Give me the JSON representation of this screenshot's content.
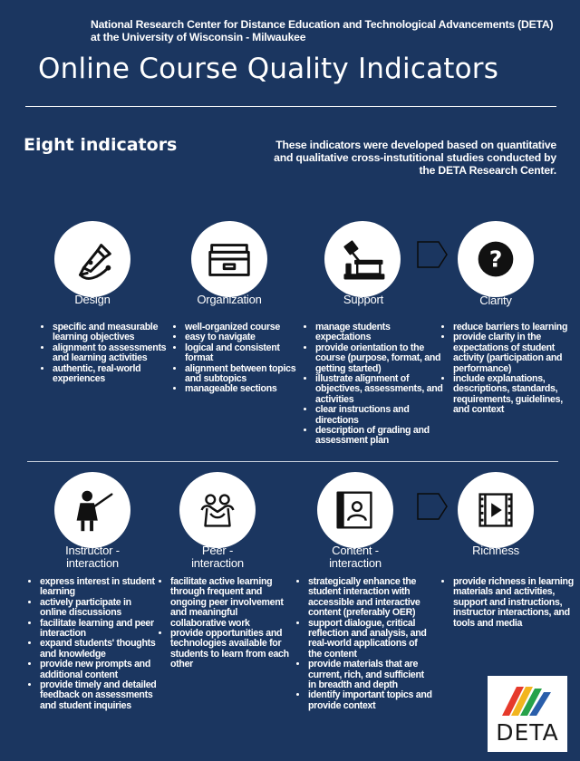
{
  "header": {
    "org_line1": "National Research Center for Distance Education and Technological Advancements (DETA)",
    "org_line2": "at the University of Wisconsin - Milwaukee",
    "title": "Online Course Quality Indicators"
  },
  "section": {
    "heading": "Eight indicators",
    "intro": "These indicators were developed based on quantitative and qualitative cross-instutitional studies conducted by the DETA Research Center."
  },
  "indicators": [
    {
      "label": "Design",
      "icon": "pen-icon",
      "bullets": [
        "specific and measurable learning objectives",
        "alignment to assessments and learning activities",
        "authentic, real-world experiences"
      ]
    },
    {
      "label": "Organization",
      "icon": "folder-icon",
      "bullets": [
        "well-organized course",
        "easy to navigate",
        "logical and consistent format",
        "alignment between topics and subtopics",
        "manageable sections"
      ]
    },
    {
      "label": "Support",
      "icon": "desk-lamp-icon",
      "bullets": [
        "manage students expectations",
        "provide orientation to the course (purpose, format, and getting started)",
        "illustrate alignment of objectives, assessments, and activities",
        "clear instructions and directions",
        "description of grading and assessment plan"
      ]
    },
    {
      "label": "Clarity",
      "icon": "question-icon",
      "bullets": [
        "reduce barriers to learning",
        "provide clarity in the expectations of student activity (participation and performance)",
        "include explanations, descriptions, standards, requirements, guidelines, and context"
      ]
    },
    {
      "label_line1": "Instructor -",
      "label_line2": "interaction",
      "icon": "teacher-icon",
      "bullets": [
        "express interest in student learning",
        "actively participate in online discussions",
        "facilitate learning and peer interaction",
        "expand students' thoughts and knowledge",
        "provide new prompts and additional content",
        "provide timely and detailed feedback on assessments and student inquiries"
      ]
    },
    {
      "label_line1": "Peer -",
      "label_line2": "interaction",
      "icon": "peers-icon",
      "bullets": [
        "facilitate active learning through frequent and ongoing peer involvement and meaningful collaborative work",
        "provide opportunities and technologies available for students to learn from  each other"
      ]
    },
    {
      "label_line1": "Content -",
      "label_line2": "interaction",
      "icon": "contact-book-icon",
      "bullets": [
        "strategically enhance the student interaction with accessible and interactive content (preferably OER)",
        "support dialogue, critical reflection and analysis, and real-world applications of the content",
        "provide materials that are current, rich, and sufficient in breadth and depth",
        "identify important topics and provide context"
      ]
    },
    {
      "label": "Richness",
      "icon": "video-film-icon",
      "bullets": [
        "provide richness in learning materials and activities, support and instructions, instructor interactions, and tools and media"
      ]
    }
  ],
  "logo": {
    "text": "DETA",
    "colors": [
      "#e63a2b",
      "#f2b51f",
      "#27a24a",
      "#2a5eaa"
    ]
  }
}
